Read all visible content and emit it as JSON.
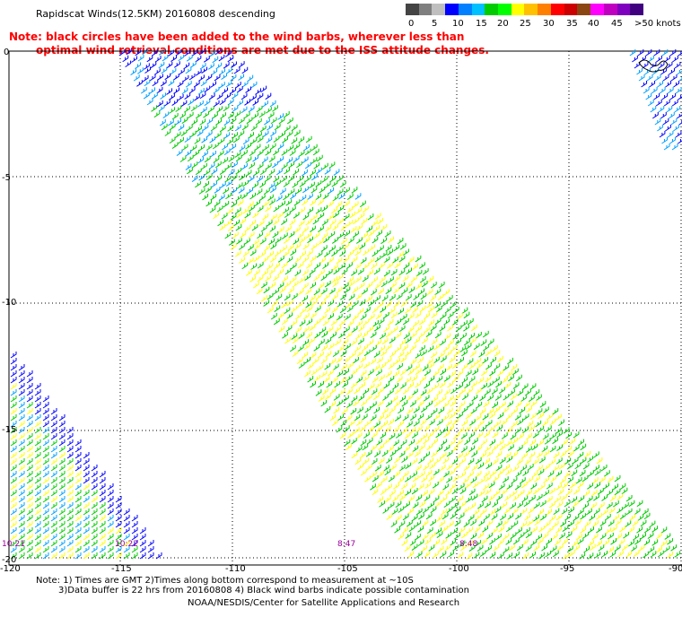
{
  "title": "Rapidscat Winds(12.5KM) 20160808 descending",
  "note_line1": "Note: black circles have been added to the wind barbs, wherever less than",
  "note_line2": "optimal wind retrieval conditions are met due to the ISS attitude changes.",
  "legend": {
    "labels": [
      "0",
      "5",
      "10",
      "15",
      "20",
      "25",
      "30",
      "35",
      "40",
      "45",
      ">50 knots"
    ],
    "colors": [
      "#444444",
      "#7f7f7f",
      "#bfbfbf",
      "#0000ff",
      "#0080ff",
      "#00c0ff",
      "#00cc00",
      "#00ff00",
      "#ffff00",
      "#ffc000",
      "#ff8000",
      "#ff0000",
      "#cc0000",
      "#8b4513",
      "#ff00ff",
      "#c000c0",
      "#8000c0",
      "#400080"
    ]
  },
  "lat_labels": [
    "0",
    "-5",
    "-10",
    "-15",
    "-20"
  ],
  "lon_labels": [
    "-120",
    "-115",
    "-110",
    "-105",
    "-100",
    "-95",
    "-90"
  ],
  "times": [
    "10:21",
    "10:22",
    "8:47",
    "8:48"
  ],
  "footnote1": "Note: 1) Times are GMT 2)Times along bottom correspond to measurement at ~10S",
  "footnote2": "3)Data buffer is 22 hrs from 20160808 4) Black wind barbs indicate possible contamination",
  "footnote3": "NOAA/NESDIS/Center for Satellite Applications and Research"
}
